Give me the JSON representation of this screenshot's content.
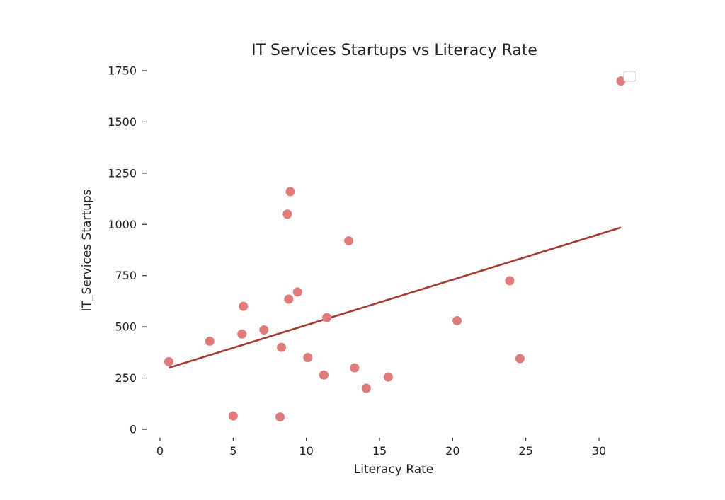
{
  "chart_data": {
    "type": "scatter",
    "title": "IT Services Startups vs Literacy Rate",
    "xlabel": "Literacy Rate",
    "ylabel": "IT_Services Startups",
    "xlim": [
      -1.0,
      33.0
    ],
    "ylim": [
      -30,
      1780
    ],
    "x_ticks": [
      0,
      5,
      10,
      15,
      20,
      25,
      30
    ],
    "y_ticks": [
      0,
      250,
      500,
      750,
      1000,
      1250,
      1500,
      1750
    ],
    "grid": false,
    "legend": {
      "location": "top-right",
      "entries": [
        ""
      ]
    },
    "point_color": "#e07b7b",
    "trend_color": "#a63a32",
    "points": [
      {
        "x": 0.6,
        "y": 330
      },
      {
        "x": 3.4,
        "y": 430
      },
      {
        "x": 5.0,
        "y": 65
      },
      {
        "x": 5.6,
        "y": 465
      },
      {
        "x": 5.7,
        "y": 600
      },
      {
        "x": 7.1,
        "y": 485
      },
      {
        "x": 8.2,
        "y": 60
      },
      {
        "x": 8.3,
        "y": 400
      },
      {
        "x": 8.7,
        "y": 1050
      },
      {
        "x": 8.8,
        "y": 635
      },
      {
        "x": 8.9,
        "y": 1160
      },
      {
        "x": 9.4,
        "y": 670
      },
      {
        "x": 10.1,
        "y": 350
      },
      {
        "x": 11.2,
        "y": 265
      },
      {
        "x": 11.4,
        "y": 545
      },
      {
        "x": 12.9,
        "y": 920
      },
      {
        "x": 13.3,
        "y": 300
      },
      {
        "x": 14.1,
        "y": 200
      },
      {
        "x": 15.6,
        "y": 255
      },
      {
        "x": 20.3,
        "y": 530
      },
      {
        "x": 23.9,
        "y": 725
      },
      {
        "x": 24.6,
        "y": 345
      },
      {
        "x": 31.5,
        "y": 1700
      }
    ],
    "trend_line": {
      "x": [
        0.6,
        31.5
      ],
      "y": [
        300,
        985
      ]
    }
  }
}
